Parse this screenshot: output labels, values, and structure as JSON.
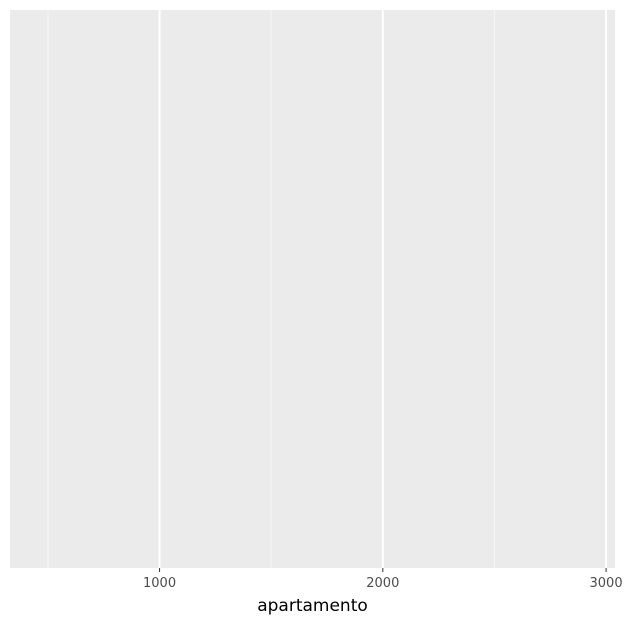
{
  "chart_data": {
    "type": "scatter",
    "title": "",
    "xlabel": "apartamento",
    "ylabel": "",
    "xlim": [
      330,
      3040
    ],
    "x_major_ticks": [
      1000,
      2000,
      3000
    ],
    "x_minor_gridlines": [
      500,
      1500,
      2500
    ],
    "x_tick_labels": [
      "1000",
      "2000",
      "3000"
    ],
    "series": [],
    "grid": true,
    "y_axis_ticks": false,
    "legend": "none",
    "colors": {
      "panel_background": "#ebebeb",
      "major_gridline": "#ffffff",
      "minor_gridline": "#f5f5f5",
      "tick_label": "#4d4d4d",
      "axis_title": "#000000"
    }
  }
}
